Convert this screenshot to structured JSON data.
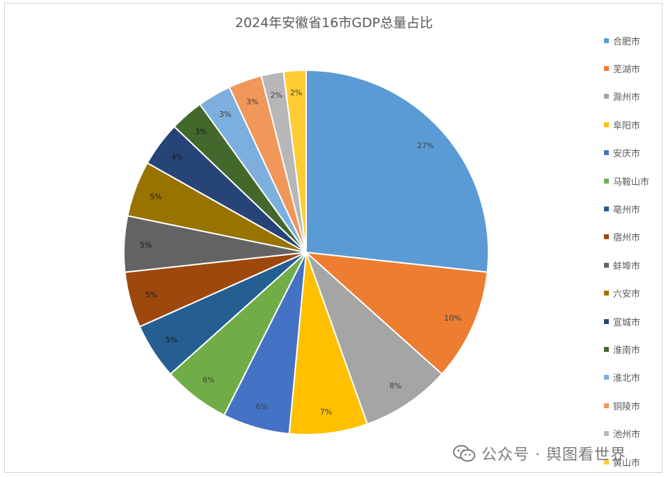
{
  "chart_data": {
    "type": "pie",
    "title": "2024年安徽省16市GDP总量占比",
    "legend_position": "right",
    "slices": [
      {
        "name": "合肥市",
        "value": 27,
        "label": "27%",
        "color": "#5B9BD5"
      },
      {
        "name": "芜湖市",
        "value": 10,
        "label": "10%",
        "color": "#ED7D31"
      },
      {
        "name": "滁州市",
        "value": 8,
        "label": "8%",
        "color": "#A5A5A5"
      },
      {
        "name": "阜阳市",
        "value": 7,
        "label": "7%",
        "color": "#FFC000"
      },
      {
        "name": "安庆市",
        "value": 6,
        "label": "6%",
        "color": "#4472C4"
      },
      {
        "name": "马鞍山市",
        "value": 6,
        "label": "6%",
        "color": "#70AD47"
      },
      {
        "name": "亳州市",
        "value": 5,
        "label": "5%",
        "color": "#255E91"
      },
      {
        "name": "宿州市",
        "value": 5,
        "label": "5%",
        "color": "#9E480E"
      },
      {
        "name": "蚌埠市",
        "value": 5,
        "label": "5%",
        "color": "#636363"
      },
      {
        "name": "六安市",
        "value": 5,
        "label": "5%",
        "color": "#997300"
      },
      {
        "name": "宣城市",
        "value": 4,
        "label": "4%",
        "color": "#264478"
      },
      {
        "name": "淮南市",
        "value": 3,
        "label": "3%",
        "color": "#43682B"
      },
      {
        "name": "淮北市",
        "value": 3,
        "label": "3%",
        "color": "#7CAFDD"
      },
      {
        "name": "铜陵市",
        "value": 3,
        "label": "3%",
        "color": "#F1975A"
      },
      {
        "name": "池州市",
        "value": 2,
        "label": "2%",
        "color": "#B7B7B7"
      },
      {
        "name": "黄山市",
        "value": 2,
        "label": "2%",
        "color": "#FFCD33"
      }
    ]
  },
  "watermark": {
    "text": "公众号 · 舆图看世界",
    "icon": "wechat-icon"
  }
}
